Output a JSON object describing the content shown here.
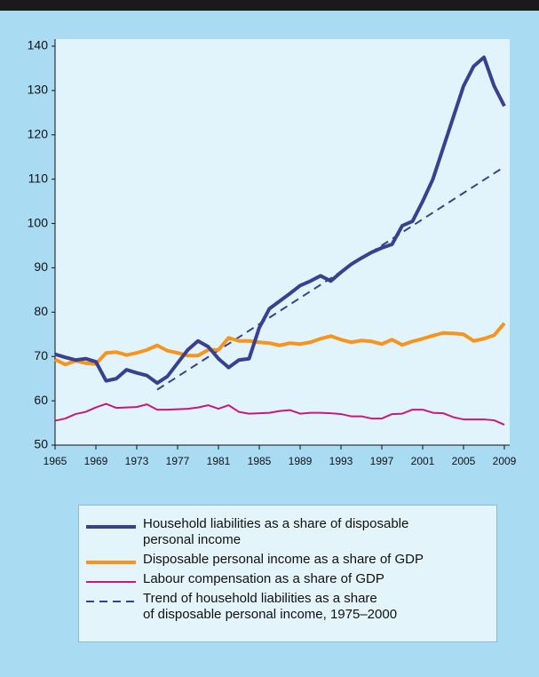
{
  "chart_data": {
    "type": "line",
    "x": [
      1965,
      1966,
      1967,
      1968,
      1969,
      1970,
      1971,
      1972,
      1973,
      1974,
      1975,
      1976,
      1977,
      1978,
      1979,
      1980,
      1981,
      1982,
      1983,
      1984,
      1985,
      1986,
      1987,
      1988,
      1989,
      1990,
      1991,
      1992,
      1993,
      1994,
      1995,
      1996,
      1997,
      1998,
      1999,
      2000,
      2001,
      2002,
      2003,
      2004,
      2005,
      2006,
      2007,
      2008,
      2009
    ],
    "series": [
      {
        "name": "Household liabilities as a share of disposable\npersonal income",
        "color": "#3b3f8f",
        "width": 4,
        "values": [
          70.5,
          69.8,
          69.2,
          69.5,
          68.8,
          64.5,
          65,
          67,
          66.3,
          65.7,
          64,
          65.5,
          68.5,
          71.5,
          73.5,
          72.2,
          69.5,
          67.5,
          69.2,
          69.5,
          76.5,
          80.8,
          82.5,
          84.2,
          86,
          87,
          88.2,
          87,
          89,
          90.8,
          92.2,
          93.5,
          94.5,
          95.3,
          99.5,
          100.5,
          105,
          110,
          117,
          124,
          131,
          135.5,
          137.5,
          131,
          126.5
        ]
      },
      {
        "name": "Disposable personal income as a share of GDP",
        "color": "#f7941d",
        "width": 4,
        "values": [
          69.3,
          68.2,
          69,
          68.5,
          68.3,
          70.8,
          71,
          70.3,
          70.8,
          71.5,
          72.5,
          71.3,
          70.8,
          70.2,
          70.2,
          71.5,
          71.5,
          74.2,
          73.5,
          73.5,
          73.2,
          73,
          72.5,
          73,
          72.8,
          73.2,
          74,
          74.6,
          73.8,
          73.2,
          73.6,
          73.4,
          72.8,
          73.8,
          72.6,
          73.4,
          74,
          74.7,
          75.3,
          75.2,
          75,
          73.5,
          74,
          74.8,
          77.5
        ]
      },
      {
        "name": "Labour compensation as a share of GDP",
        "color": "#c8177e",
        "width": 2,
        "values": [
          55.5,
          56,
          57,
          57.5,
          58.5,
          59.3,
          58.4,
          58.5,
          58.6,
          59.2,
          58,
          58,
          58.1,
          58.2,
          58.5,
          59,
          58.2,
          59,
          57.5,
          57.1,
          57.2,
          57.3,
          57.7,
          57.9,
          57.1,
          57.3,
          57.3,
          57.2,
          57,
          56.5,
          56.5,
          56,
          56,
          57,
          57.1,
          58,
          58,
          57.3,
          57.2,
          56.3,
          55.8,
          55.8,
          55.8,
          55.6,
          54.6
        ]
      },
      {
        "name": "Trend of household liabilities as a share\nof disposable personal income, 1975–2000",
        "color": "#3b3f8f",
        "width": 2,
        "dashed": true,
        "x": [
          1975,
          2009
        ],
        "values": [
          62.5,
          112.8
        ]
      }
    ],
    "xlim": [
      1965,
      2009
    ],
    "xticks": [
      1965,
      1969,
      1973,
      1977,
      1981,
      1985,
      1989,
      1993,
      1997,
      2001,
      2005,
      2009
    ],
    "ylim": [
      50,
      140
    ],
    "yticks": [
      50,
      60,
      70,
      80,
      90,
      100,
      110,
      120,
      130,
      140
    ],
    "grid": false
  }
}
